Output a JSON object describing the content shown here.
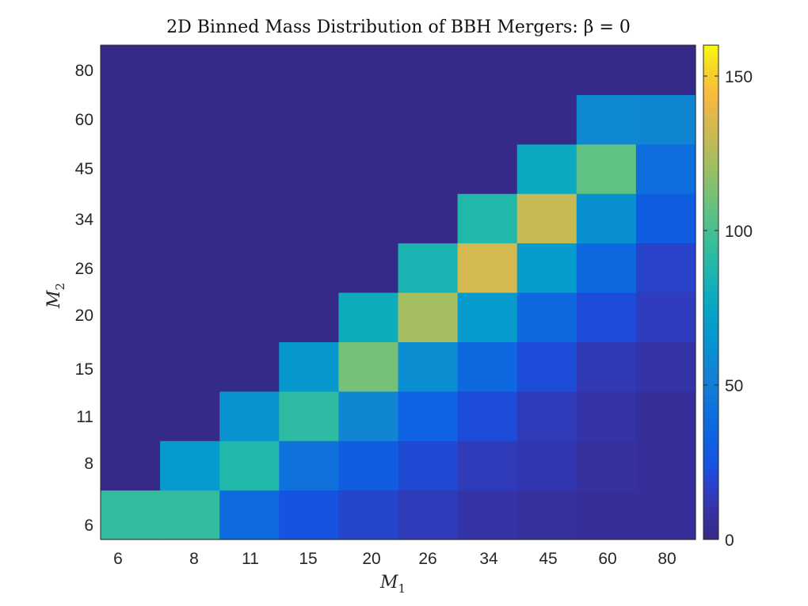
{
  "chart_data": {
    "type": "heatmap",
    "title": "2D Binned Mass Distribution of BBH Mergers: β = 0",
    "xlabel": "M",
    "xlabel_sub": "1",
    "ylabel": "M",
    "ylabel_sub": "2",
    "x_categories": [
      "6",
      "8",
      "11",
      "15",
      "20",
      "26",
      "34",
      "45",
      "60",
      "80"
    ],
    "y_categories": [
      "6",
      "8",
      "11",
      "15",
      "20",
      "26",
      "34",
      "45",
      "60",
      "80"
    ],
    "x_tick_labels": [
      "6",
      "8",
      "11",
      "15",
      "20",
      "26",
      "34",
      "45",
      "60",
      "80"
    ],
    "y_tick_labels": [
      "6",
      "8",
      "11",
      "15",
      "20",
      "26",
      "34",
      "45",
      "60",
      "80"
    ],
    "colorbar": {
      "colormap": "parula",
      "range": [
        0,
        160
      ],
      "ticks": [
        0,
        50,
        100,
        150
      ],
      "tick_labels": [
        "0",
        "50",
        "100",
        "150"
      ]
    },
    "values": [
      [
        94,
        94,
        38,
        25,
        19,
        14,
        10,
        8,
        6,
        6
      ],
      [
        0,
        68,
        88,
        42,
        30,
        21,
        14,
        12,
        8,
        6
      ],
      [
        0,
        0,
        64,
        92,
        56,
        34,
        22,
        14,
        10,
        6
      ],
      [
        0,
        0,
        0,
        67,
        111,
        60,
        37,
        22,
        13,
        10
      ],
      [
        0,
        0,
        0,
        0,
        80,
        122,
        68,
        37,
        22,
        15
      ],
      [
        0,
        0,
        0,
        0,
        0,
        85,
        134,
        69,
        37,
        18
      ],
      [
        0,
        0,
        0,
        0,
        0,
        0,
        88,
        130,
        62,
        30
      ],
      [
        0,
        0,
        0,
        0,
        0,
        0,
        0,
        78,
        106,
        40
      ],
      [
        0,
        0,
        0,
        0,
        0,
        0,
        0,
        0,
        57,
        56
      ],
      [
        0,
        0,
        0,
        0,
        0,
        0,
        0,
        0,
        0,
        0
      ]
    ],
    "grid": false
  }
}
